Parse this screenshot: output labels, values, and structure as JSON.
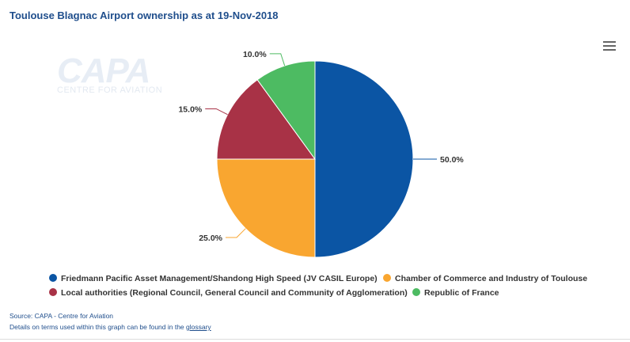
{
  "title": "Toulouse Blagnac Airport ownership as at 19-Nov-2018",
  "watermark": {
    "main": "CAPA",
    "sub": "CENTRE FOR AVIATION"
  },
  "menu_icon": "hamburger-menu-icon",
  "chart_data": {
    "type": "pie",
    "title": "Toulouse Blagnac Airport ownership as at 19-Nov-2018",
    "slices": [
      {
        "name": "Friedmann Pacific Asset Management/Shandong High Speed (JV CASIL Europe)",
        "value": 50.0,
        "label": "50.0%",
        "color": "#0b55a4"
      },
      {
        "name": "Chamber of Commerce and Industry of Toulouse",
        "value": 25.0,
        "label": "25.0%",
        "color": "#f9a630"
      },
      {
        "name": "Local authorities (Regional Council, General Council and Community of Agglomeration)",
        "value": 15.0,
        "label": "15.0%",
        "color": "#a83246"
      },
      {
        "name": "Republic of France",
        "value": 10.0,
        "label": "10.0%",
        "color": "#4dbb62"
      }
    ],
    "legend_placement": "bottom"
  },
  "footer": {
    "source": "Source: CAPA - Centre for Aviation",
    "details": "Details on terms used within this graph can be found in the ",
    "link": "glossary"
  }
}
